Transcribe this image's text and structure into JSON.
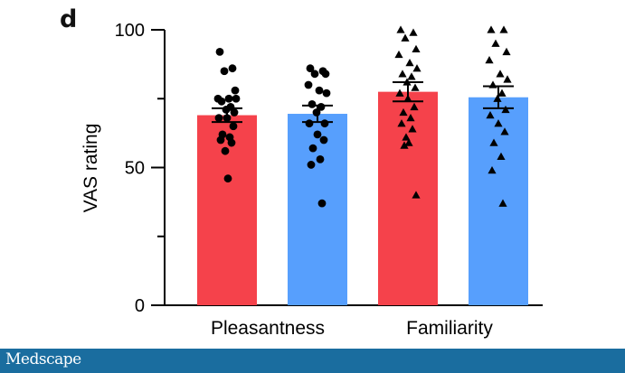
{
  "panel_label": "d",
  "brand": {
    "name": "Medscape"
  },
  "chart_data": {
    "type": "bar",
    "title": "",
    "xlabel": "",
    "ylabel": "VAS rating",
    "ylim": [
      0,
      100
    ],
    "yticks": [
      0,
      50,
      100
    ],
    "y_minor_ticks": [
      25,
      75
    ],
    "groups": [
      "Pleasantness",
      "Familiarity"
    ],
    "grid": false,
    "legend": "none",
    "bars": [
      {
        "group": "Pleasantness",
        "color": "#f5424b",
        "value": 69,
        "sem": [
          66.5,
          71.5
        ],
        "marker": "circle",
        "points": [
          92,
          86,
          85,
          78,
          75,
          75,
          75,
          74,
          72,
          71,
          70,
          68,
          68,
          65,
          62,
          61,
          60,
          59,
          56,
          46
        ]
      },
      {
        "group": "Pleasantness",
        "color": "#579ffd",
        "value": 69.5,
        "sem": [
          66.5,
          72.5
        ],
        "marker": "circle",
        "points": [
          86,
          85,
          84,
          84,
          80,
          78,
          77,
          73,
          72,
          70,
          66,
          66,
          62,
          60,
          57,
          53,
          51,
          37
        ]
      },
      {
        "group": "Familiarity",
        "color": "#f5424b",
        "value": 77.5,
        "sem": [
          74,
          81
        ],
        "marker": "triangle",
        "points": [
          100,
          99,
          97,
          93,
          91,
          88,
          86,
          84,
          83,
          81,
          79,
          77,
          75,
          72,
          70,
          68,
          66,
          64,
          61,
          59,
          58,
          40
        ]
      },
      {
        "group": "Familiarity",
        "color": "#579ffd",
        "value": 75.5,
        "sem": [
          71.5,
          79.5
        ],
        "marker": "triangle",
        "points": [
          100,
          100,
          95,
          92,
          89,
          84,
          82,
          80,
          77,
          75,
          71,
          69,
          66,
          63,
          59,
          54,
          49,
          37
        ]
      }
    ]
  }
}
